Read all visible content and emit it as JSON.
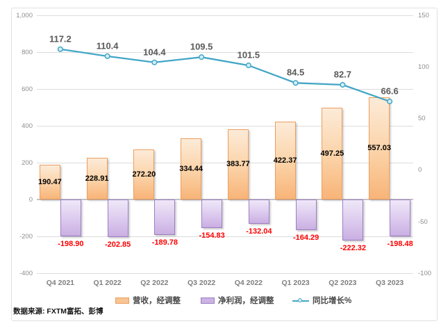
{
  "chart_data": {
    "type": "combo-bar-line",
    "categories": [
      "Q4 2021",
      "Q1 2022",
      "Q2 2022",
      "Q3 2022",
      "Q4 2022",
      "Q1 2023",
      "Q2 2023",
      "Q3 2023"
    ],
    "series": [
      {
        "name": "营收，经调整",
        "type": "bar",
        "axis": "left",
        "values": [
          190.47,
          228.91,
          272.2,
          334.44,
          383.77,
          422.37,
          497.25,
          557.03
        ],
        "labels": [
          "190.47",
          "228.91",
          "272.20",
          "334.44",
          "383.77",
          "422.37",
          "497.25",
          "557.03"
        ]
      },
      {
        "name": "净利润，经调整",
        "type": "bar",
        "axis": "left",
        "values": [
          -198.9,
          -202.85,
          -189.78,
          -154.83,
          -132.04,
          -164.29,
          -222.32,
          -198.48
        ],
        "labels": [
          "-198.90",
          "-202.85",
          "-189.78",
          "-154.83",
          "-132.04",
          "-164.29",
          "-222.32",
          "-198.48"
        ]
      },
      {
        "name": "同比增长%",
        "type": "line",
        "axis": "right",
        "values": [
          117.2,
          110.4,
          104.4,
          109.5,
          101.5,
          84.5,
          82.7,
          66.6
        ],
        "labels": [
          "117.2",
          "110.4",
          "104.4",
          "109.5",
          "101.5",
          "84.5",
          "82.7",
          "66.6"
        ]
      }
    ],
    "left_axis": {
      "min": -400,
      "max": 1000,
      "step": 200,
      "tick_labels": [
        "1,000",
        "800",
        "600",
        "400",
        "200",
        "0",
        "-200",
        "-400"
      ]
    },
    "right_axis": {
      "min": -100,
      "max": 150,
      "step": 50,
      "tick_labels": [
        "150",
        "100",
        "50",
        "0",
        "-50",
        "-100"
      ]
    },
    "grid": true,
    "legend_position": "bottom",
    "title": ""
  },
  "legend": {
    "items": [
      {
        "label": "营收，经调整",
        "swatch": "bar-orange"
      },
      {
        "label": "净利润，经调整",
        "swatch": "bar-purple"
      },
      {
        "label": "同比增长%",
        "swatch": "line-marker"
      }
    ]
  },
  "footer": {
    "source": "数据来源: FXTM富拓、彭博"
  },
  "colors": {
    "bar_revenue_top": "#FCEBD8",
    "bar_revenue_bottom": "#F8B478",
    "bar_revenue_border": "#EC9D5E",
    "bar_net_top": "#EFE8F8",
    "bar_net_bottom": "#C9AFE2",
    "bar_net_border": "#9B7EC3",
    "line": "#42A6C6",
    "marker_fill": "#D6EDF5",
    "label_positive": "#000000",
    "label_negative": "#FE0000",
    "label_line": "#595959",
    "axis_text": "#8C8C8C",
    "x_axis_text": "#7F7F7F",
    "gridline": "#DCDCDC",
    "zero_line": "#C2C2C2",
    "frame_border": "#E0E0E0"
  }
}
